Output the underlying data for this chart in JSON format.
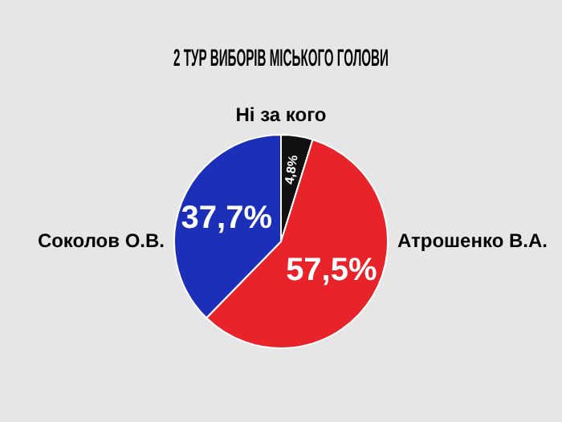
{
  "chart_data": {
    "type": "pie",
    "title": "2 ТУР ВИБОРІВ МІСЬКОГО ГОЛОВИ",
    "categories": [
      "Ні за кого",
      "Атрошенко В.А.",
      "Соколов О.В."
    ],
    "values": [
      4.8,
      57.5,
      37.7
    ],
    "colors": [
      "#111111",
      "#e8232a",
      "#1c2fb8"
    ],
    "value_labels": [
      "4,8%",
      "57,5%",
      "37,7%"
    ]
  }
}
